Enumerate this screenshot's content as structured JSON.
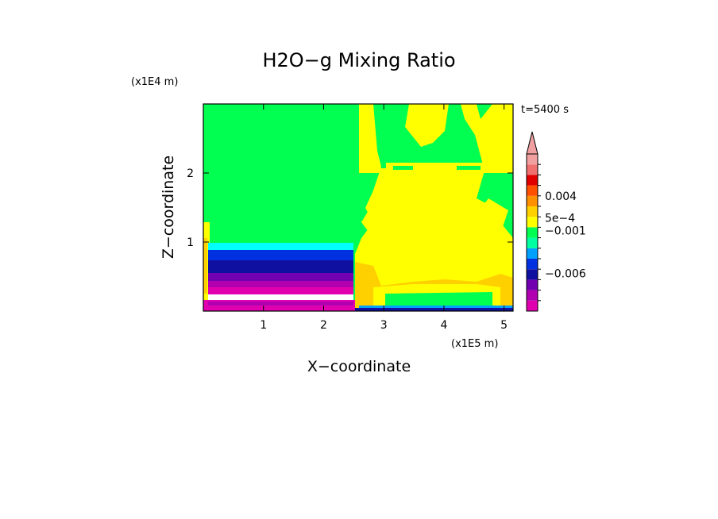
{
  "chart_data": {
    "type": "heatmap",
    "title": "H2O−g Mixing Ratio",
    "xlabel": "X−coordinate",
    "ylabel": "Z−coordinate",
    "x_unit": "(x1E5 m)",
    "y_unit": "(x1E4 m)",
    "time_label": "t=5400 s",
    "xlim": [
      0,
      5.15
    ],
    "ylim": [
      0,
      3.0
    ],
    "x_ticks": [
      1,
      2,
      3,
      4,
      5
    ],
    "y_ticks": [
      1,
      2
    ],
    "grid": false,
    "colorbar": {
      "labels": [
        {
          "text": "0.004",
          "value": 0.004
        },
        {
          "text": "5e−4",
          "value": 0.0005
        },
        {
          "text": "−0.001",
          "value": -0.001
        },
        {
          "text": "−0.006",
          "value": -0.006
        }
      ],
      "colors": [
        "#e000b0",
        "#b000b0",
        "#7000b0",
        "#1010a0",
        "#0030e0",
        "#00a0ff",
        "#00ffa0",
        "#00ff50",
        "#ffff00",
        "#ffd000",
        "#ff9000",
        "#ff5000",
        "#e00000",
        "#f07070",
        "#f0a0a0"
      ],
      "extend": "max"
    },
    "regions": [
      {
        "name": "background",
        "value_class": "green",
        "color": "#00ff50"
      },
      {
        "name": "low-left band",
        "value_class": "negative",
        "x": [
          0.05,
          2.45
        ],
        "z": [
          0.05,
          1.0
        ]
      },
      {
        "name": "right plume",
        "value_class": "yellow",
        "x": [
          2.55,
          5.15
        ],
        "z": [
          0.0,
          3.0
        ]
      }
    ]
  }
}
